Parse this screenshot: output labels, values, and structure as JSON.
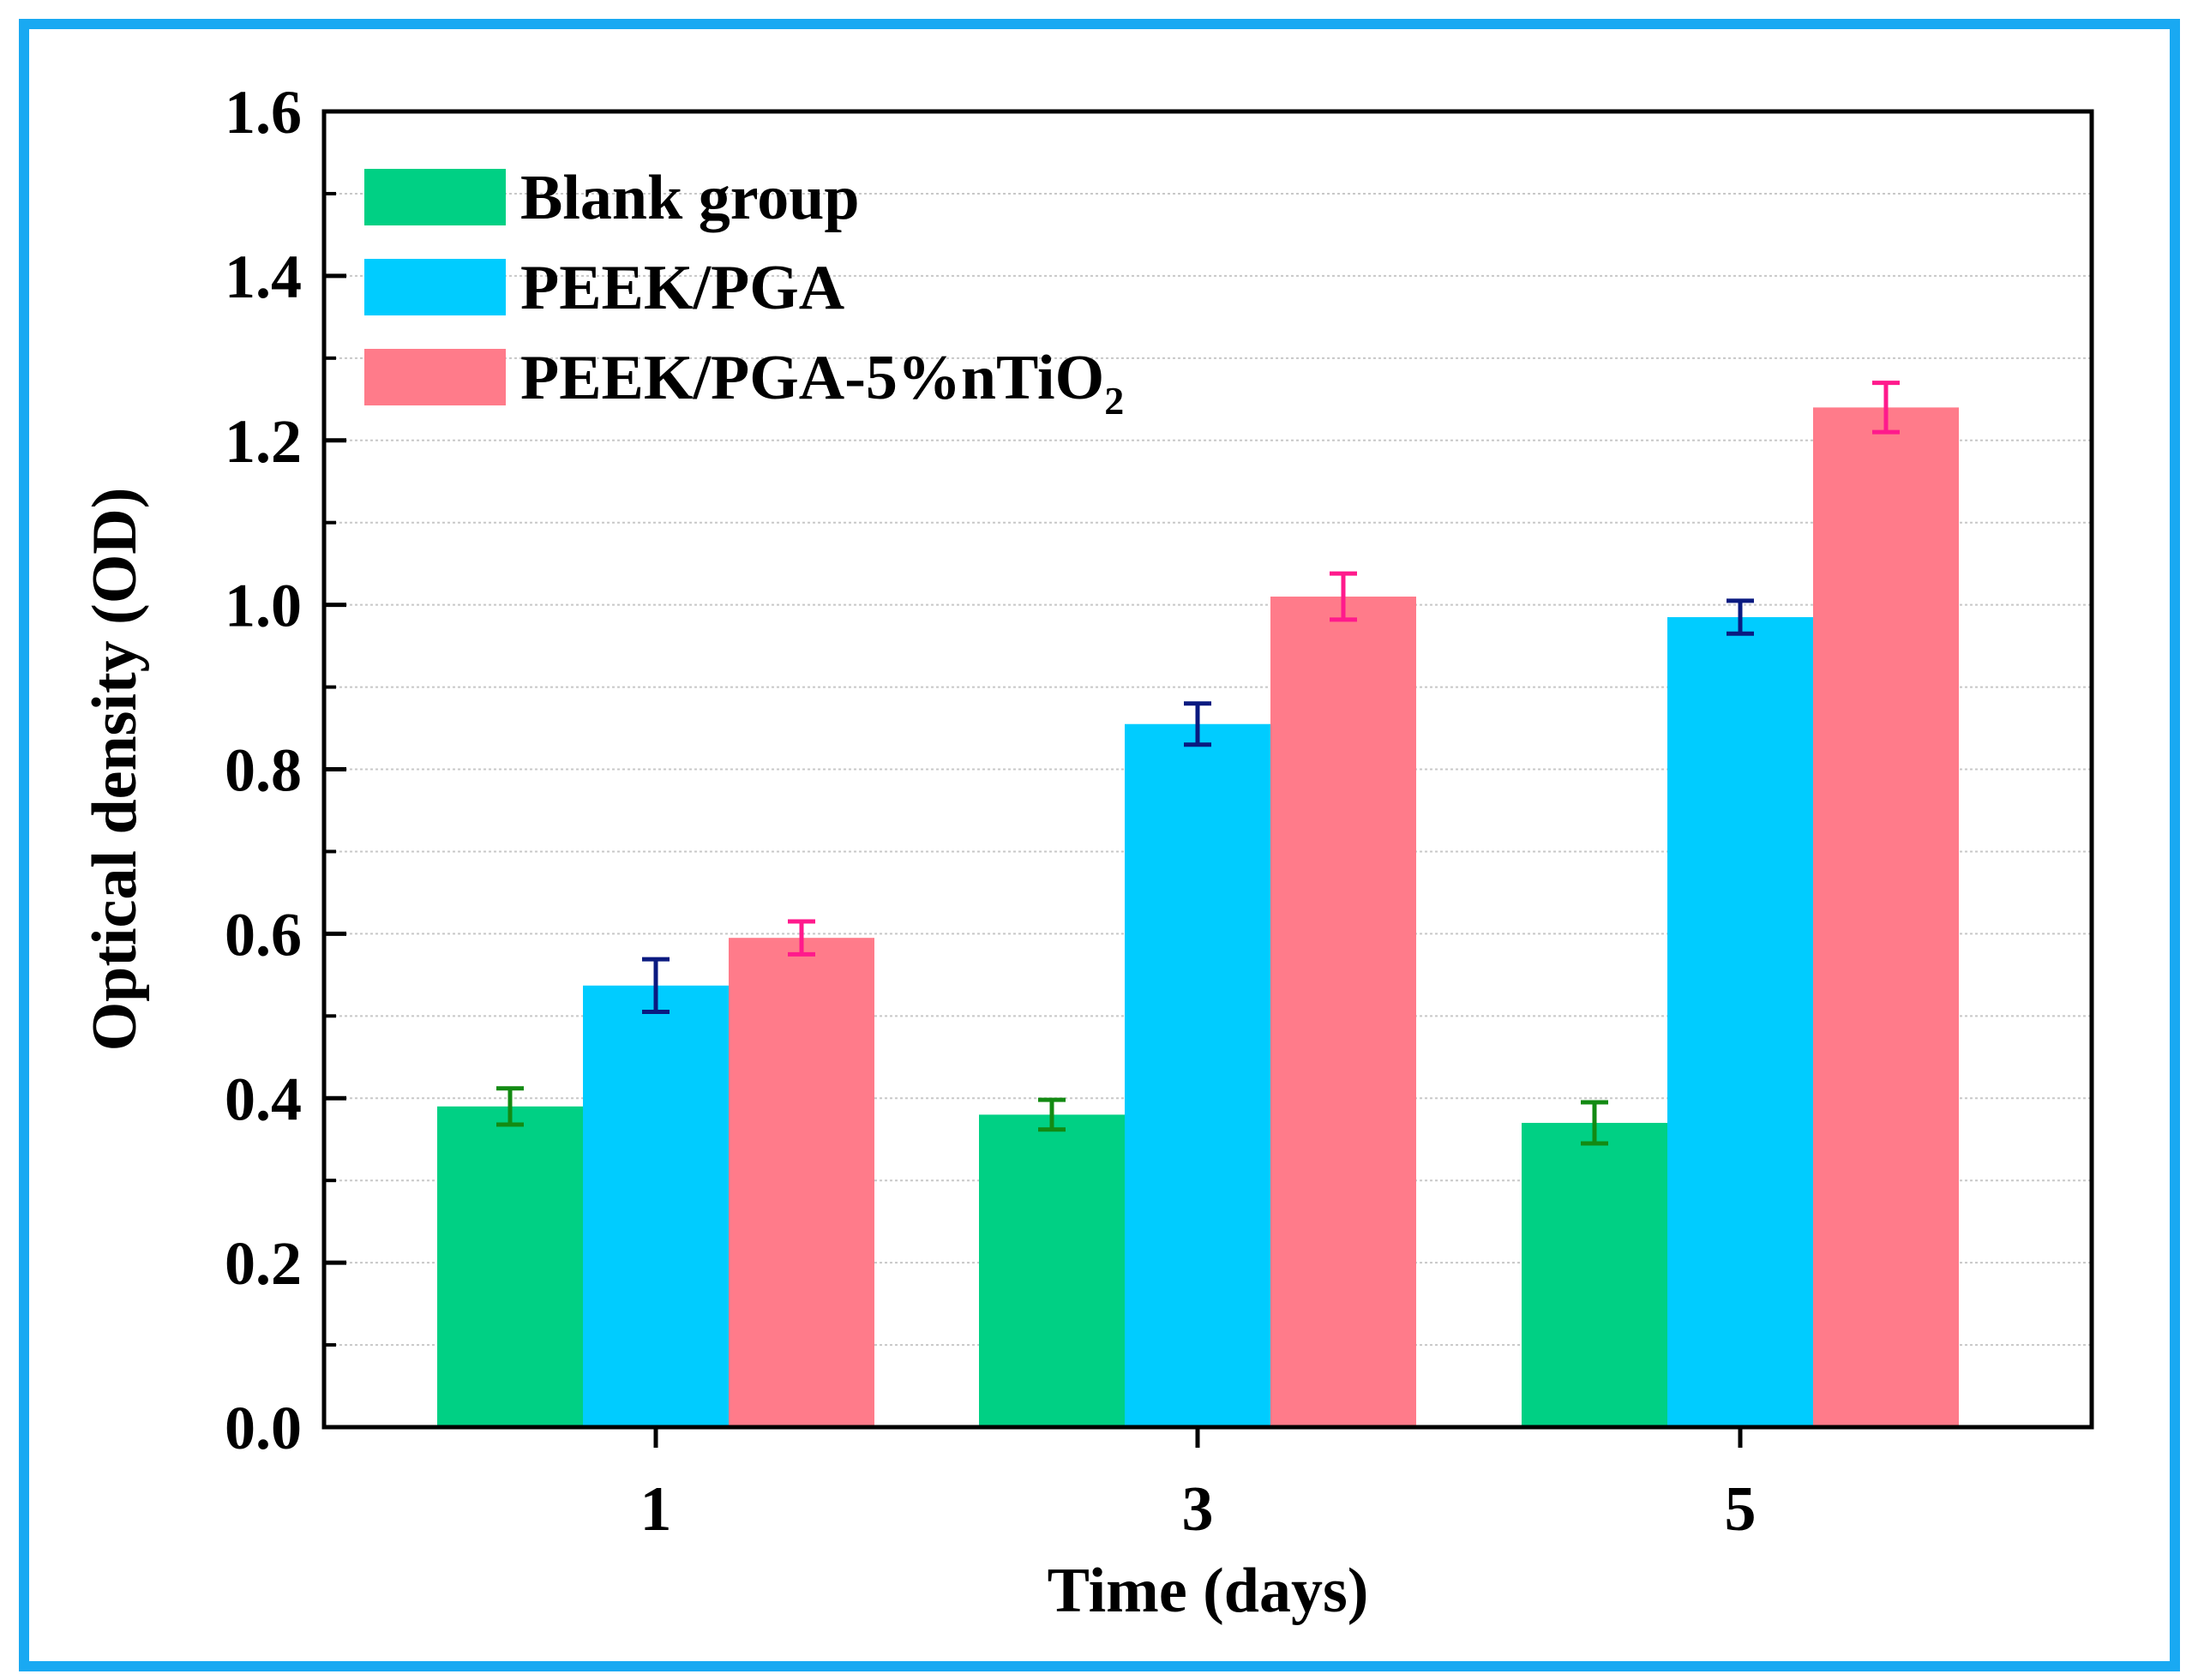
{
  "chart_data": {
    "type": "bar",
    "xlabel": "Time (days)",
    "ylabel": "Optical density (OD)",
    "categories": [
      "1",
      "3",
      "5"
    ],
    "ylim": [
      0,
      1.6
    ],
    "yticks": [
      "0.0",
      "0.2",
      "0.4",
      "0.6",
      "0.8",
      "1.0",
      "1.2",
      "1.4",
      "1.6"
    ],
    "grid": true,
    "legend_position": "top-left",
    "series": [
      {
        "name": "Blank group",
        "color": "#00d084",
        "error_color": "#138a13",
        "values": [
          0.39,
          0.38,
          0.37
        ],
        "errors": [
          0.022,
          0.018,
          0.025
        ]
      },
      {
        "name": "PEEK/PGA",
        "color": "#00ccff",
        "error_color": "#0a1a80",
        "values": [
          0.537,
          0.855,
          0.985
        ],
        "errors": [
          0.032,
          0.025,
          0.02
        ]
      },
      {
        "name_main": "PEEK/PGA-5%nTiO",
        "name_sub": "2",
        "color": "#ff7b8a",
        "error_color": "#ff1a8c",
        "values": [
          0.595,
          1.01,
          1.24
        ],
        "errors": [
          0.02,
          0.028,
          0.03
        ]
      }
    ]
  }
}
